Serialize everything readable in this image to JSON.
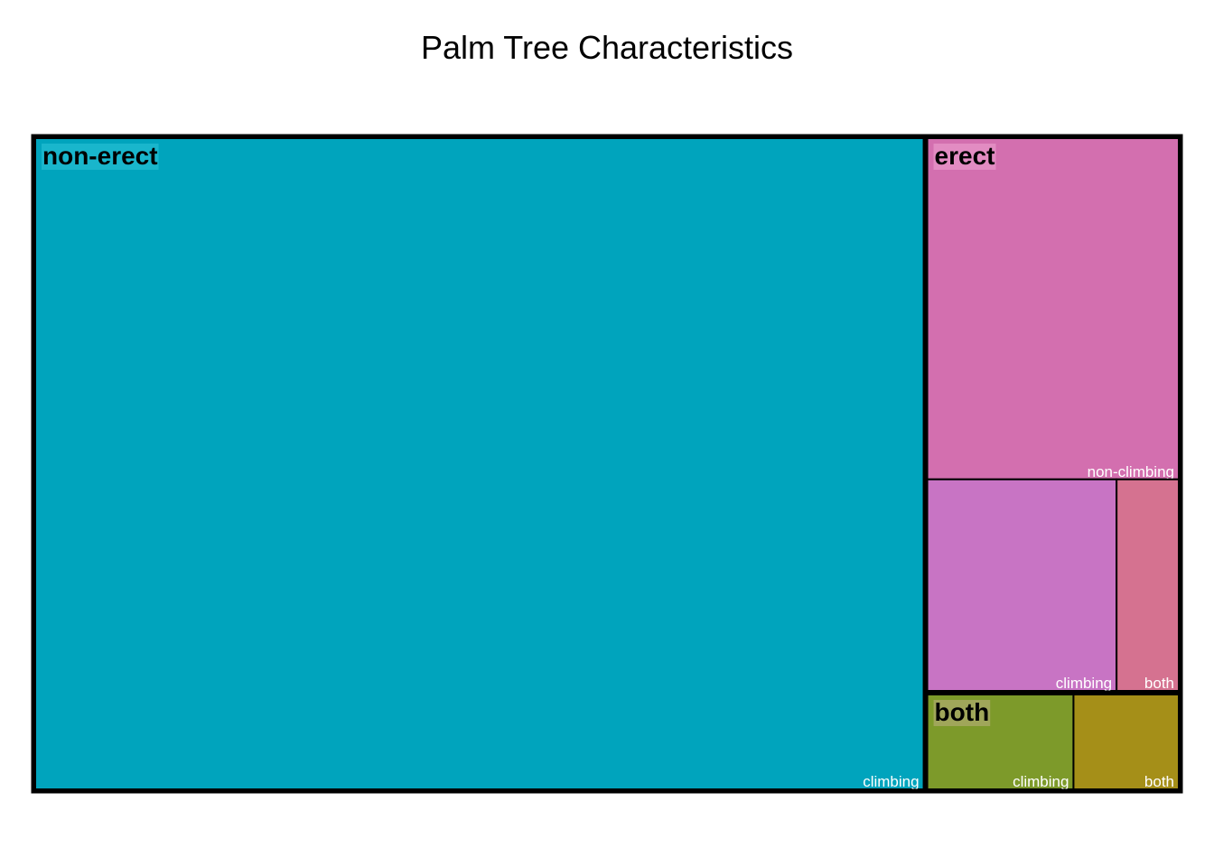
{
  "chart_data": {
    "type": "treemap",
    "title": "Palm Tree Characteristics",
    "groups": [
      {
        "name": "non-erect",
        "color": "#00A4BD",
        "label_bg": "#19B6CC",
        "children": [
          {
            "name": "climbing",
            "value": 1,
            "color": "#00A4BD"
          }
        ]
      },
      {
        "name": "erect",
        "color": "#D36FAF",
        "label_bg": "#E28CC2",
        "children": [
          {
            "name": "non-climbing",
            "value": 0.15,
            "color": "#D36FAF"
          },
          {
            "name": "climbing",
            "value": 0.07,
            "color": "#C874C4"
          },
          {
            "name": "both",
            "value": 0.023,
            "color": "#D57290"
          }
        ]
      },
      {
        "name": "both",
        "color": "#7D9A2A",
        "label_bg": "#A0A65A",
        "children": [
          {
            "name": "climbing",
            "value": 0.025,
            "color": "#7D9A2A"
          },
          {
            "name": "both",
            "value": 0.018,
            "color": "#A58F18"
          }
        ]
      }
    ]
  }
}
